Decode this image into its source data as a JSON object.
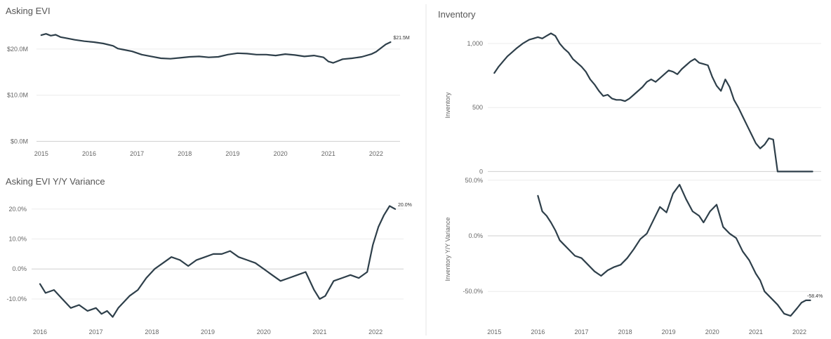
{
  "chart_data": [
    {
      "id": "evi",
      "type": "line",
      "title": "Asking EVI",
      "xlabel": "",
      "ylabel": "",
      "x_ticks": [
        "2015",
        "2016",
        "2017",
        "2018",
        "2019",
        "2020",
        "2021",
        "2022"
      ],
      "y_ticks": [
        {
          "v": 0,
          "label": "$0.0M"
        },
        {
          "v": 10,
          "label": "$10.0M"
        },
        {
          "v": 20,
          "label": "$20.0M"
        }
      ],
      "xlim": [
        2014.9,
        2022.5
      ],
      "ylim": [
        -1,
        25.3
      ],
      "grid": true,
      "end_label": "$21.5M",
      "color": "#2e3f4a",
      "series": [
        {
          "x": [
            2015.0,
            2015.1,
            2015.2,
            2015.3,
            2015.4,
            2015.5,
            2015.7,
            2015.9,
            2016.1,
            2016.3,
            2016.5,
            2016.6,
            2016.7,
            2016.9,
            2017.1,
            2017.3,
            2017.5,
            2017.7,
            2017.9,
            2018.1,
            2018.3,
            2018.5,
            2018.7,
            2018.9,
            2019.1,
            2019.3,
            2019.5,
            2019.7,
            2019.9,
            2020.1,
            2020.3,
            2020.5,
            2020.7,
            2020.9,
            2021.0,
            2021.1,
            2021.3,
            2021.5,
            2021.7,
            2021.9,
            2022.0,
            2022.1,
            2022.2,
            2022.3
          ],
          "y": [
            23.0,
            23.3,
            22.9,
            23.1,
            22.6,
            22.4,
            22.0,
            21.7,
            21.5,
            21.2,
            20.7,
            20.1,
            19.9,
            19.5,
            18.8,
            18.4,
            18.0,
            17.9,
            18.1,
            18.3,
            18.4,
            18.2,
            18.3,
            18.8,
            19.1,
            19.0,
            18.8,
            18.8,
            18.6,
            18.9,
            18.7,
            18.4,
            18.6,
            18.2,
            17.3,
            17.0,
            17.8,
            18.0,
            18.3,
            18.9,
            19.4,
            20.2,
            21.0,
            21.5
          ]
        }
      ]
    },
    {
      "id": "evi_yy",
      "type": "line",
      "title": "Asking EVI Y/Y Variance",
      "xlabel": "",
      "ylabel": "",
      "x_ticks": [
        "2016",
        "2017",
        "2018",
        "2019",
        "2020",
        "2021",
        "2022"
      ],
      "y_ticks": [
        {
          "v": -10,
          "label": "-10.0%"
        },
        {
          "v": 0,
          "label": "0.0%"
        },
        {
          "v": 10,
          "label": "10.0%"
        },
        {
          "v": 20,
          "label": "20.0%"
        }
      ],
      "xlim": [
        2015.85,
        2022.5
      ],
      "ylim": [
        -17.5,
        23
      ],
      "grid": true,
      "end_label": "20.0%",
      "color": "#2e3f4a",
      "series": [
        {
          "x": [
            2016.0,
            2016.1,
            2016.25,
            2016.4,
            2016.55,
            2016.7,
            2016.85,
            2017.0,
            2017.1,
            2017.2,
            2017.3,
            2017.4,
            2017.5,
            2017.6,
            2017.75,
            2017.9,
            2018.05,
            2018.2,
            2018.35,
            2018.5,
            2018.65,
            2018.8,
            2018.95,
            2019.1,
            2019.25,
            2019.4,
            2019.55,
            2019.7,
            2019.85,
            2020.0,
            2020.15,
            2020.3,
            2020.45,
            2020.6,
            2020.75,
            2020.9,
            2021.0,
            2021.1,
            2021.25,
            2021.4,
            2021.55,
            2021.7,
            2021.85,
            2021.95,
            2022.05,
            2022.15,
            2022.25,
            2022.35
          ],
          "y": [
            -5,
            -8,
            -7,
            -10,
            -13,
            -12,
            -14,
            -13,
            -15,
            -14,
            -16,
            -13,
            -11,
            -9,
            -7,
            -3,
            0,
            2,
            4,
            3,
            1,
            3,
            4,
            5,
            5,
            6,
            4,
            3,
            2,
            0,
            -2,
            -4,
            -3,
            -2,
            -1,
            -7,
            -10,
            -9,
            -4,
            -3,
            -2,
            -3,
            -1,
            8,
            14,
            18,
            21,
            20
          ]
        }
      ]
    },
    {
      "id": "inv",
      "type": "line",
      "title": "Inventory",
      "xlabel": "",
      "ylabel": "Inventory",
      "x_ticks": [
        "2015",
        "2016",
        "2017",
        "2018",
        "2019",
        "2020",
        "2021",
        "2022"
      ],
      "y_ticks": [
        {
          "v": 0,
          "label": "0"
        },
        {
          "v": 500,
          "label": "500"
        },
        {
          "v": 1000,
          "label": "1,000"
        }
      ],
      "xlim": [
        2014.85,
        2022.5
      ],
      "ylim": [
        -20,
        1110
      ],
      "grid": true,
      "end_label": "",
      "color": "#2e3f4a",
      "series": [
        {
          "x": [
            2015.0,
            2015.1,
            2015.2,
            2015.3,
            2015.4,
            2015.5,
            2015.65,
            2015.8,
            2015.9,
            2016.0,
            2016.1,
            2016.2,
            2016.3,
            2016.4,
            2016.5,
            2016.6,
            2016.7,
            2016.8,
            2016.9,
            2017.0,
            2017.1,
            2017.2,
            2017.3,
            2017.4,
            2017.5,
            2017.6,
            2017.7,
            2017.8,
            2017.9,
            2018.0,
            2018.1,
            2018.2,
            2018.3,
            2018.4,
            2018.5,
            2018.6,
            2018.7,
            2018.8,
            2018.9,
            2019.0,
            2019.1,
            2019.2,
            2019.3,
            2019.4,
            2019.5,
            2019.6,
            2019.7,
            2019.8,
            2019.9,
            2020.0,
            2020.1,
            2020.2,
            2020.3,
            2020.4,
            2020.5,
            2020.6,
            2020.7,
            2020.8,
            2020.9,
            2021.0,
            2021.1,
            2021.2,
            2021.3,
            2021.4,
            2021.5,
            2021.6,
            2021.7,
            2021.8,
            2021.9,
            2022.0,
            2022.1,
            2022.2,
            2022.3
          ],
          "y": [
            770,
            820,
            860,
            900,
            930,
            960,
            1000,
            1030,
            1040,
            1050,
            1040,
            1060,
            1080,
            1060,
            1000,
            960,
            930,
            880,
            850,
            820,
            780,
            720,
            680,
            630,
            590,
            600,
            570,
            560,
            560,
            550,
            570,
            600,
            630,
            660,
            700,
            720,
            700,
            730,
            760,
            790,
            780,
            760,
            800,
            830,
            860,
            880,
            850,
            840,
            830,
            740,
            670,
            630,
            720,
            660,
            560,
            500,
            430,
            360,
            290,
            220,
            180,
            210,
            260,
            250,
            0,
            0,
            0,
            0,
            0,
            0,
            0,
            0,
            0
          ]
        }
      ]
    },
    {
      "id": "inv_yy",
      "type": "line",
      "title": "",
      "xlabel": "",
      "ylabel": "Inventory Y/Y Variance",
      "x_ticks": [
        "2015",
        "2016",
        "2017",
        "2018",
        "2019",
        "2020",
        "2021",
        "2022"
      ],
      "y_ticks": [
        {
          "v": -50,
          "label": "-50.0%"
        },
        {
          "v": 0,
          "label": "0.0%"
        },
        {
          "v": 50,
          "label": "50.0%"
        }
      ],
      "xlim": [
        2014.85,
        2022.5
      ],
      "ylim": [
        -77,
        53
      ],
      "grid": true,
      "end_label": "-58.4%",
      "color": "#2e3f4a",
      "series": [
        {
          "x": [
            2016.0,
            2016.1,
            2016.2,
            2016.3,
            2016.4,
            2016.5,
            2016.6,
            2016.7,
            2016.85,
            2017.0,
            2017.15,
            2017.3,
            2017.45,
            2017.6,
            2017.75,
            2017.9,
            2018.05,
            2018.2,
            2018.35,
            2018.5,
            2018.65,
            2018.8,
            2018.95,
            2019.1,
            2019.25,
            2019.4,
            2019.55,
            2019.7,
            2019.8,
            2019.95,
            2020.1,
            2020.25,
            2020.4,
            2020.55,
            2020.7,
            2020.85,
            2021.0,
            2021.1,
            2021.2,
            2021.35,
            2021.5,
            2021.65,
            2021.8,
            2021.95,
            2022.05,
            2022.15,
            2022.25
          ],
          "y": [
            36,
            22,
            18,
            12,
            5,
            -4,
            -8,
            -12,
            -18,
            -20,
            -26,
            -32,
            -36,
            -31,
            -28,
            -26,
            -20,
            -12,
            -3,
            2,
            14,
            26,
            21,
            38,
            46,
            33,
            22,
            18,
            12,
            22,
            28,
            8,
            2,
            -2,
            -14,
            -22,
            -34,
            -40,
            -50,
            -56,
            -62,
            -70,
            -72,
            -65,
            -60,
            -58,
            -58
          ]
        }
      ]
    }
  ]
}
